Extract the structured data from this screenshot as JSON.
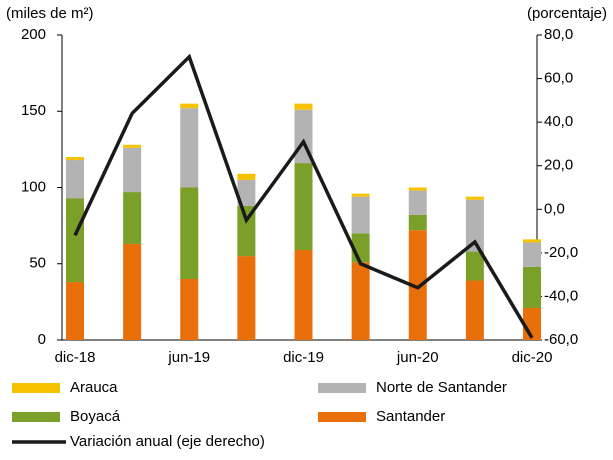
{
  "chart_data": {
    "type": "bar",
    "y_label": "(miles de m²)",
    "y2_label": "(porcentaje)",
    "categories": [
      "dic-18",
      null,
      "jun-19",
      null,
      "dic-19",
      null,
      "jun-20",
      null,
      "dic-20"
    ],
    "stacked": true,
    "series": [
      {
        "name": "Santander",
        "color": "#e96f0b",
        "values": [
          38,
          63,
          40,
          55,
          59,
          51,
          72,
          39,
          21
        ]
      },
      {
        "name": "Boyacá",
        "color": "#7aa02a",
        "values": [
          55,
          34,
          60,
          33,
          57,
          19,
          10,
          19,
          27
        ]
      },
      {
        "name": "Norte de Santander",
        "color": "#b3b3b3",
        "values": [
          25,
          29,
          52,
          17,
          35,
          24,
          16,
          34,
          16
        ]
      },
      {
        "name": "Arauca",
        "color": "#f7c200",
        "values": [
          2,
          2,
          3,
          4,
          4,
          2,
          2,
          2,
          2
        ]
      },
      {
        "name": "Variación anual (eje derecho)",
        "type": "line",
        "axis": "y2",
        "color": "#1a1a1a",
        "values": [
          -12,
          44,
          70,
          -5,
          31,
          -25,
          -36,
          -15,
          -59
        ]
      }
    ],
    "ylim": [
      0,
      200
    ],
    "yticks": [
      0,
      50,
      100,
      150,
      200
    ],
    "y2lim": [
      -60,
      80
    ],
    "y2ticks": [
      {
        "value": -60,
        "label": "-60,0"
      },
      {
        "value": -40,
        "label": "-40,0"
      },
      {
        "value": -20,
        "label": "-20,0"
      },
      {
        "value": 0,
        "label": "0,0"
      },
      {
        "value": 20,
        "label": "20,0"
      },
      {
        "value": 40,
        "label": "40,0"
      },
      {
        "value": 60,
        "label": "60,0"
      },
      {
        "value": 80,
        "label": "80,0"
      }
    ]
  }
}
